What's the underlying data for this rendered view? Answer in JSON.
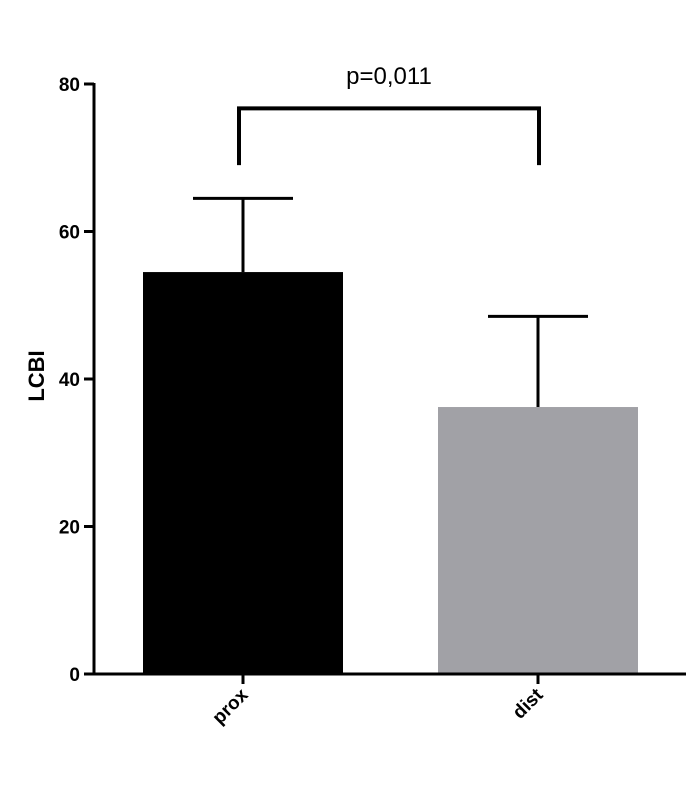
{
  "chart_data": {
    "type": "bar",
    "categories": [
      "prox",
      "dist"
    ],
    "values": [
      54.5,
      36.2
    ],
    "error_upper": [
      64.5,
      48.5
    ],
    "colors": [
      "#000000",
      "#a1a1a6"
    ],
    "ylabel": "LCBI",
    "xlabel": "",
    "title": "",
    "ylim": [
      0,
      80
    ],
    "yticks": [
      0,
      20,
      40,
      60,
      80
    ],
    "ytick_labels": [
      "0",
      "20",
      "40",
      "60",
      "80"
    ],
    "grid": false,
    "annotation": {
      "text": "p=0,011",
      "between": [
        "prox",
        "dist"
      ],
      "bracket_y": 76.7,
      "bracket_end_y": 69
    }
  }
}
